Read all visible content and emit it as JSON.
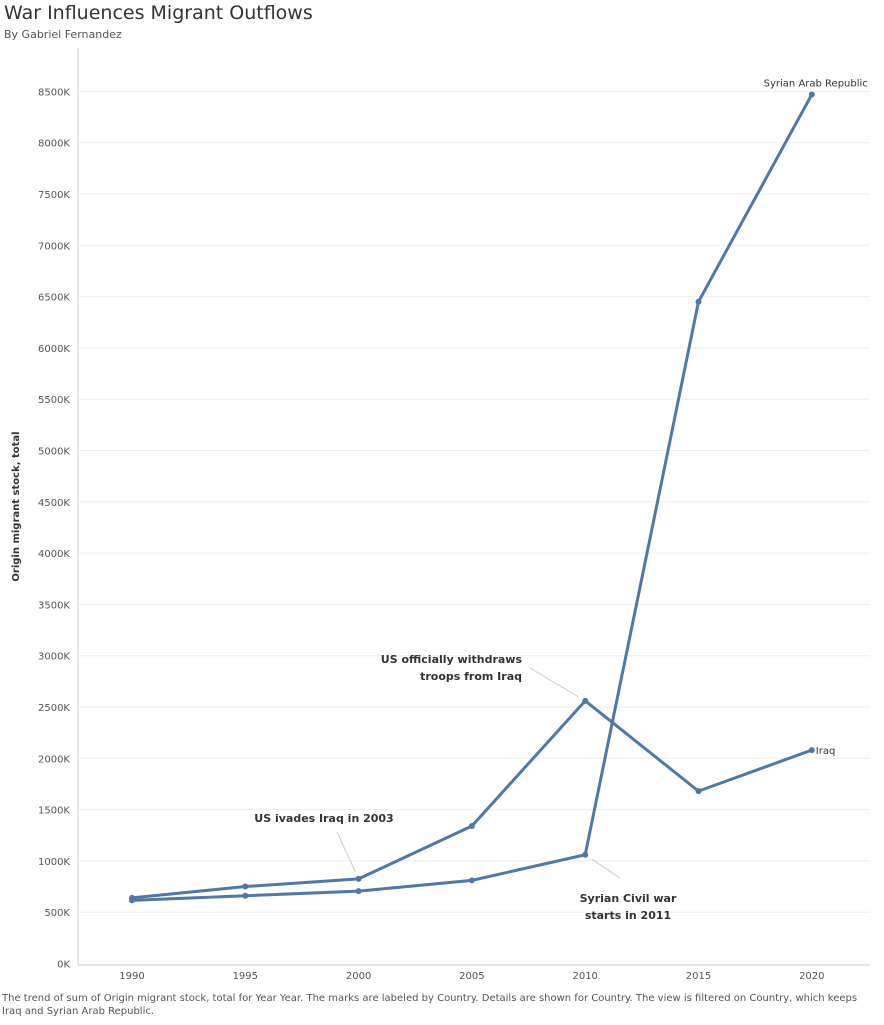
{
  "title": "War Influences Migrant Outflows",
  "subtitle": "By Gabriel Fernandez",
  "caption": "The trend of sum of Origin migrant stock, total for Year Year.  The marks are labeled by Country.  Details are shown for Country. The view is filtered on Country, which keeps Iraq and Syrian Arab Republic.",
  "colors": {
    "line": "#4e79a7",
    "grid": "#eeeeee",
    "axis": "#cccccc",
    "leader": "#cccccc"
  },
  "chart_data": {
    "type": "line",
    "x": [
      1990,
      1995,
      2000,
      2005,
      2010,
      2015,
      2020
    ],
    "ylabel": "Origin migrant stock, total",
    "xlabel": "",
    "ylim": [
      0,
      8800
    ],
    "yticks": [
      0,
      500,
      1000,
      1500,
      2000,
      2500,
      3000,
      3500,
      4000,
      4500,
      5000,
      5500,
      6000,
      6500,
      7000,
      7500,
      8000,
      8500
    ],
    "ytick_labels": [
      "0K",
      "500K",
      "1000K",
      "1500K",
      "2000K",
      "2500K",
      "3000K",
      "3500K",
      "4000K",
      "4500K",
      "5000K",
      "5500K",
      "6000K",
      "6500K",
      "7000K",
      "7500K",
      "8000K",
      "8500K"
    ],
    "xtick_labels": [
      "1990",
      "1995",
      "2000",
      "2005",
      "2010",
      "2015",
      "2020"
    ],
    "grid": true,
    "series": [
      {
        "name": "Iraq",
        "values": [
          640,
          750,
          825,
          1340,
          2560,
          1680,
          2080
        ]
      },
      {
        "name": "Syrian Arab Republic",
        "values": [
          615,
          660,
          705,
          810,
          1060,
          6450,
          8470
        ]
      }
    ],
    "annotations": [
      {
        "lines": [
          "US ivades Iraq in 2003"
        ],
        "x": 2000,
        "y": 825
      },
      {
        "lines": [
          "US officially withdraws",
          "troops from Iraq"
        ],
        "x": 2010,
        "y": 2560
      },
      {
        "lines": [
          "Syrian Civil war",
          "starts in 2011"
        ],
        "x": 2010,
        "y": 1060
      }
    ]
  }
}
